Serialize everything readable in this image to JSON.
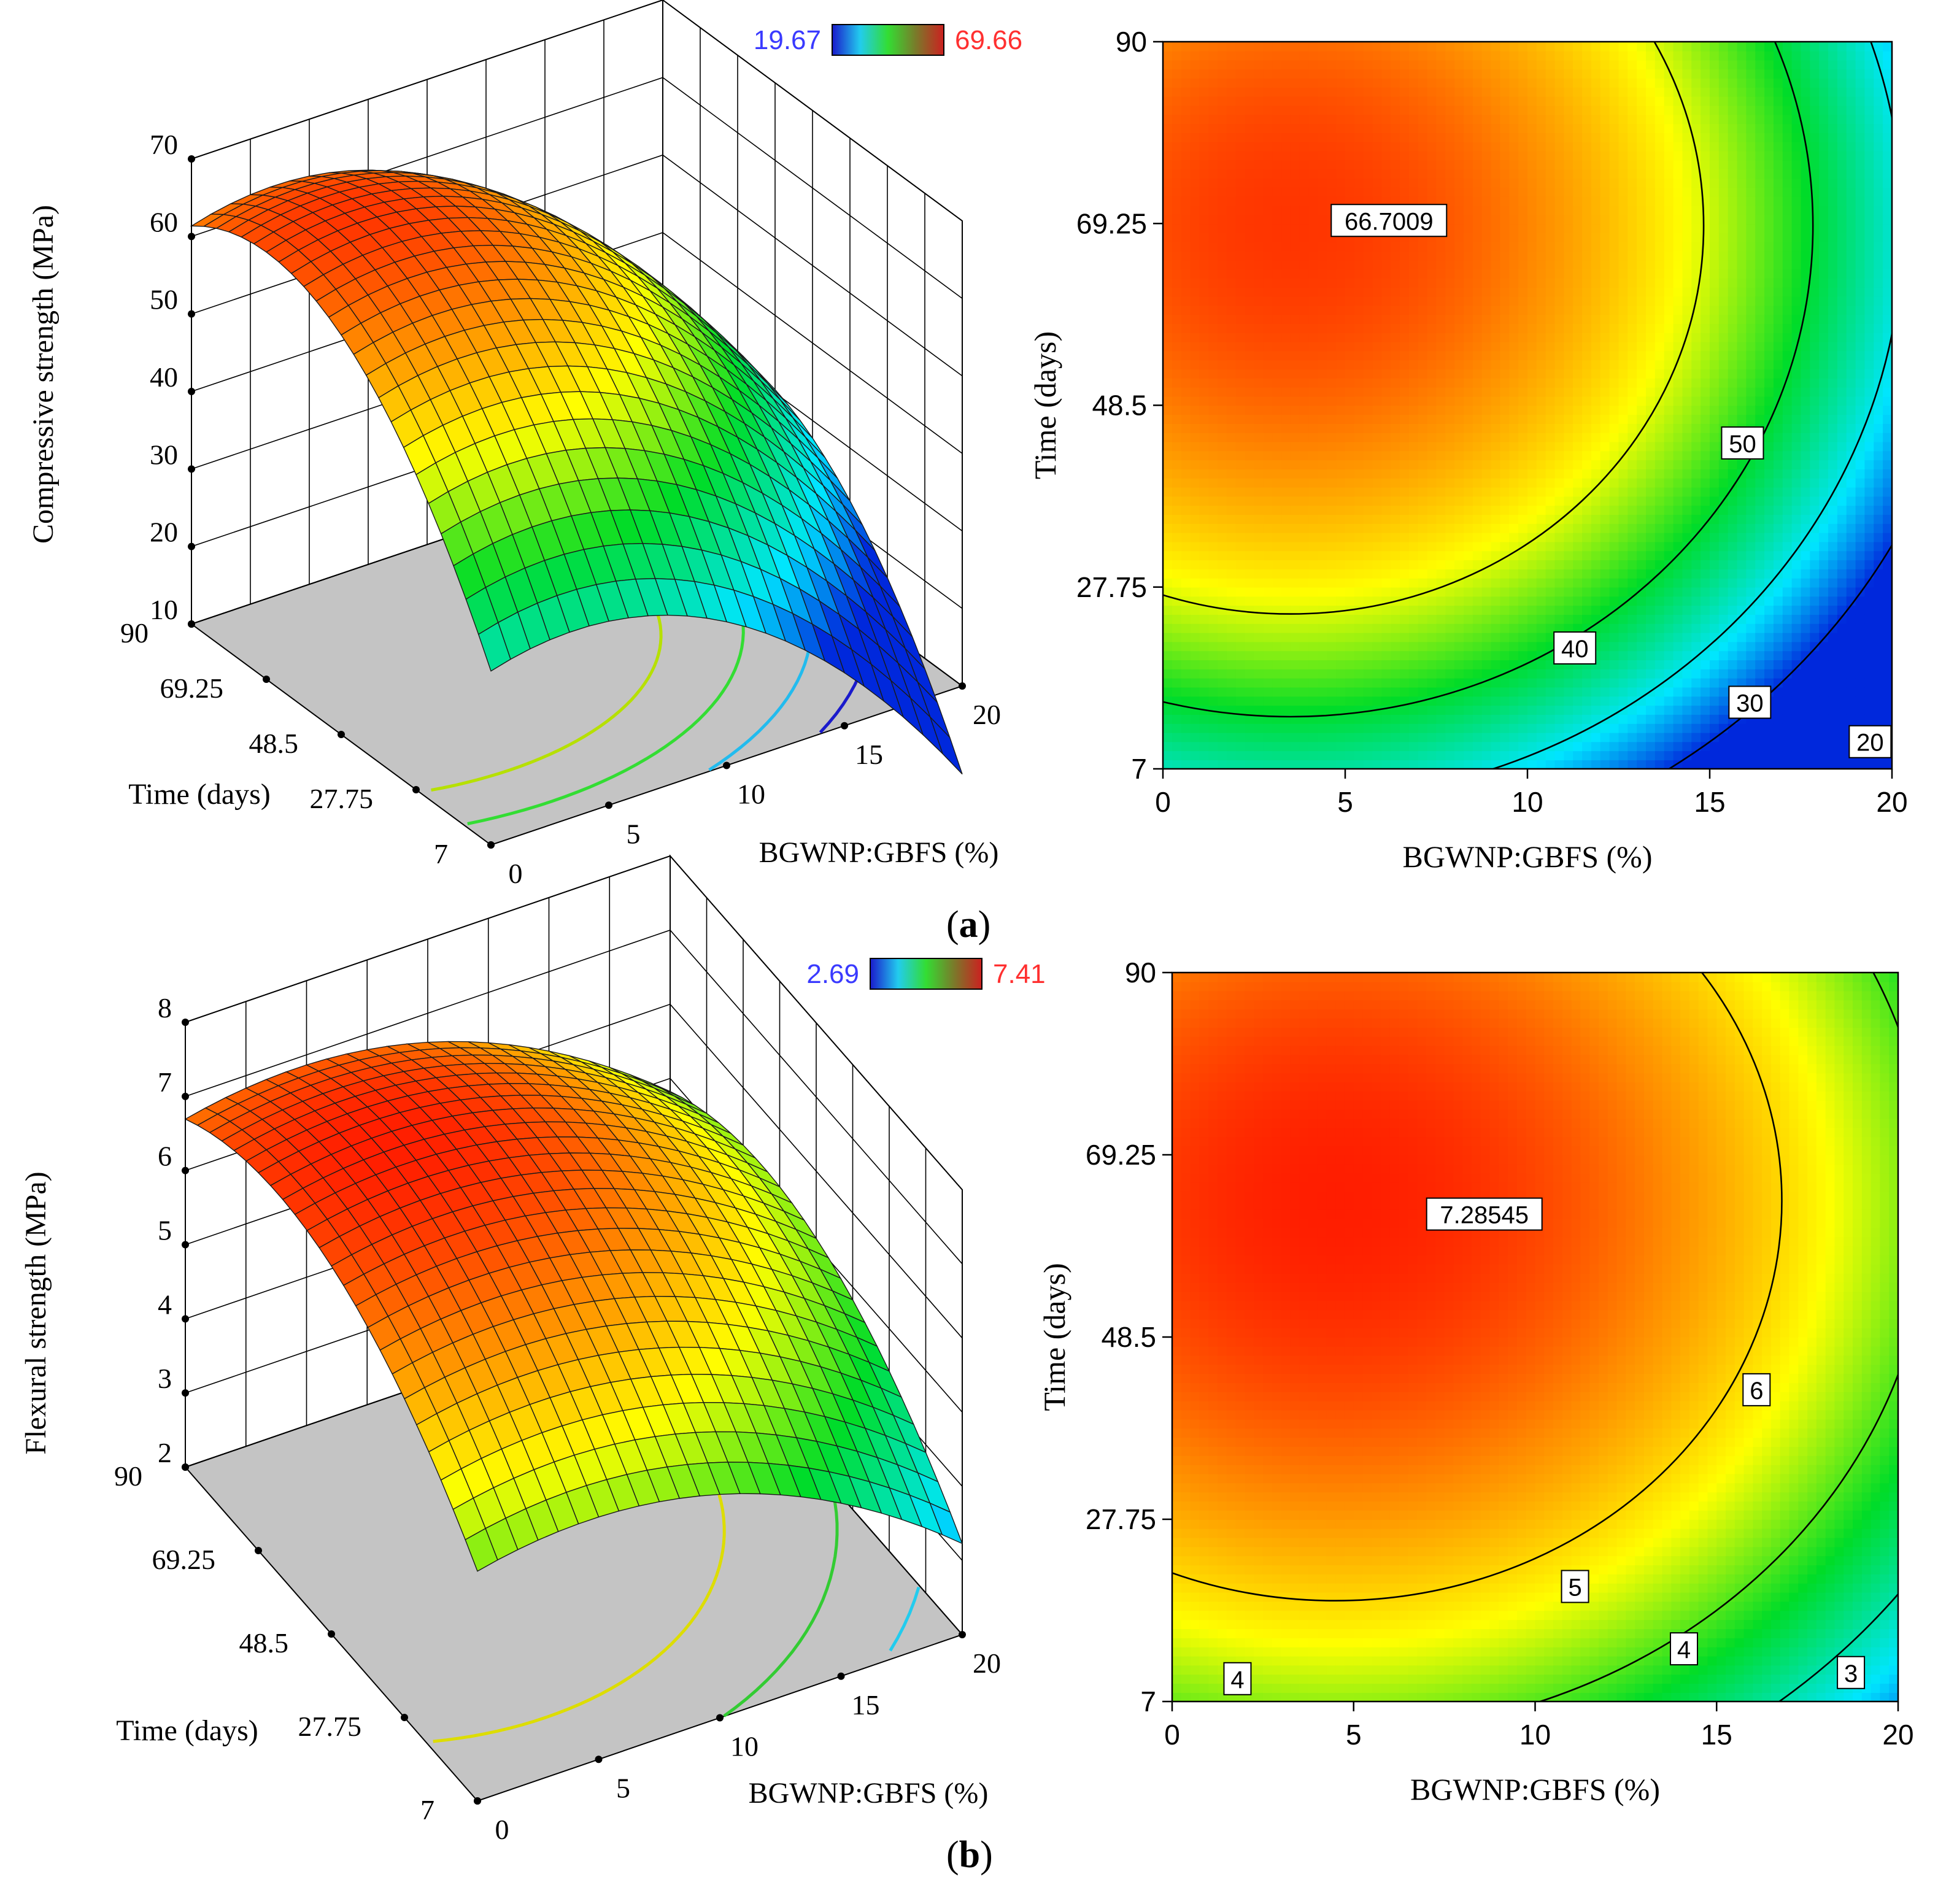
{
  "figure": {
    "panel_a_label": "a",
    "panel_b_label": "b"
  },
  "chart_data": [
    {
      "id": "a-surface",
      "type": "surface3d",
      "title": "",
      "zlabel": "Compressive strength (MPa)",
      "xlabel": "BGWNP:GBFS  (%)",
      "ylabel": "Time (days)",
      "xlim": [
        0,
        20
      ],
      "ylim": [
        7,
        90
      ],
      "zlim": [
        10,
        70
      ],
      "xticks": [
        "0",
        "5",
        "10",
        "15",
        "20"
      ],
      "yticks": [
        "7",
        "27.75",
        "48.5",
        "69.25",
        "90"
      ],
      "zticks": [
        "10",
        "20",
        "30",
        "40",
        "50",
        "60",
        "70"
      ],
      "colorbar": {
        "min_label": "19.67",
        "max_label": "69.66",
        "min_color": "#3a3aff",
        "max_color": "#ff3030"
      },
      "model": {
        "peak": 66.7,
        "x0": 3.5,
        "y0": 69,
        "ax": 0.13,
        "ay": 0.0085
      },
      "floor_contours": [
        {
          "level": 66.7009,
          "color": "#ff4000"
        },
        {
          "level": 50,
          "color": "#b6e000"
        },
        {
          "level": 40,
          "color": "#33dd33"
        },
        {
          "level": 30,
          "color": "#22bbee"
        },
        {
          "level": 20,
          "color": "#1a1acc"
        }
      ]
    },
    {
      "id": "a-contour",
      "type": "contour",
      "xlabel": "BGWNP:GBFS  (%)",
      "ylabel": "Time (days)",
      "xlim": [
        0,
        20
      ],
      "ylim": [
        7,
        90
      ],
      "xticks": [
        "0",
        "5",
        "10",
        "15",
        "20"
      ],
      "yticks": [
        "7",
        "27.75",
        "48.5",
        "69.25",
        "90"
      ],
      "model": {
        "peak": 66.7,
        "x0": 3.5,
        "y0": 69,
        "ax": 0.13,
        "ay": 0.0085,
        "zmin": 19.67,
        "zmax": 69.66
      },
      "contours": [
        {
          "level": 66.7009,
          "label": "66.7009",
          "label_x": 6.2,
          "label_y": 69.6
        },
        {
          "level": 50,
          "label": "50",
          "label_x": 15.9,
          "label_y": 44.2
        },
        {
          "level": 40,
          "label": "40",
          "label_x": 11.3,
          "label_y": 20.8
        },
        {
          "level": 30,
          "label": "30",
          "label_x": 16.1,
          "label_y": 14.6
        },
        {
          "level": 20,
          "label": "20",
          "label_x": 19.4,
          "label_y": 10.1
        }
      ]
    },
    {
      "id": "b-surface",
      "type": "surface3d",
      "title": "",
      "zlabel": "Flexural strength (MPa)",
      "xlabel": "BGWNP:GBFS  (%)",
      "ylabel": "Time (days)",
      "xlim": [
        0,
        20
      ],
      "ylim": [
        7,
        90
      ],
      "zlim": [
        2,
        8
      ],
      "xticks": [
        "0",
        "5",
        "10",
        "15",
        "20"
      ],
      "yticks": [
        "7",
        "27.75",
        "48.5",
        "69.25",
        "90"
      ],
      "zticks": [
        "2",
        "3",
        "4",
        "5",
        "6",
        "7",
        "8"
      ],
      "colorbar": {
        "min_label": "2.69",
        "max_label": "7.41",
        "min_color": "#3a3aff",
        "max_color": "#ff3030"
      },
      "model": {
        "peak": 7.285,
        "x0": 4.5,
        "y0": 64,
        "ax": 0.0085,
        "ay": 0.00062
      },
      "floor_contours": [
        {
          "level": 7.28545,
          "color": "#ff3000"
        },
        {
          "level": 6,
          "color": "#dddd00"
        },
        {
          "level": 5,
          "color": "#33cc33"
        },
        {
          "level": 4,
          "color": "#22ccee"
        },
        {
          "level": 3,
          "color": "#2222cc"
        }
      ]
    },
    {
      "id": "b-contour",
      "type": "contour",
      "xlabel": "BGWNP:GBFS  (%)",
      "ylabel": "Time (days)",
      "xlim": [
        0,
        20
      ],
      "ylim": [
        7,
        90
      ],
      "xticks": [
        "0",
        "5",
        "10",
        "15",
        "20"
      ],
      "yticks": [
        "7",
        "27.75",
        "48.5",
        "69.25",
        "90"
      ],
      "model": {
        "peak": 7.285,
        "x0": 4.5,
        "y0": 64,
        "ax": 0.0085,
        "ay": 0.00062,
        "zmin": 2.69,
        "zmax": 7.41
      },
      "contours": [
        {
          "level": 7.28545,
          "label": "7.28545",
          "label_x": 8.6,
          "label_y": 62.5
        },
        {
          "level": 6,
          "label": "6",
          "label_x": 16.1,
          "label_y": 42.5
        },
        {
          "level": 5,
          "label": "5",
          "label_x": 11.1,
          "label_y": 20.1
        },
        {
          "level": 4,
          "label": "4",
          "label_x": 14.1,
          "label_y": 13.0
        },
        {
          "level": 4,
          "label": "4",
          "label_x": 1.8,
          "label_y": 9.6
        },
        {
          "level": 3,
          "label": "3",
          "label_x": 18.7,
          "label_y": 10.3
        }
      ]
    }
  ]
}
